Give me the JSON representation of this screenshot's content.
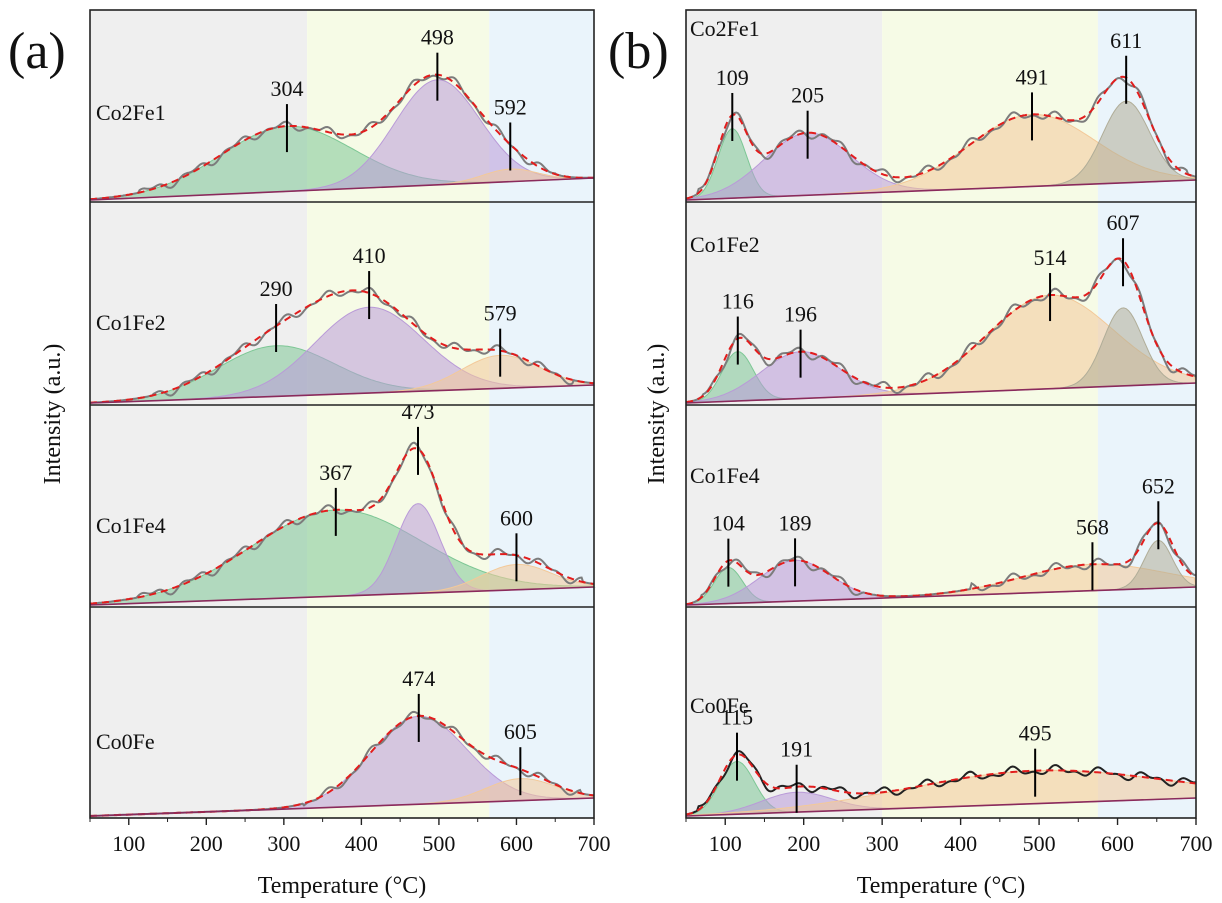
{
  "figure": {
    "panel_labels": [
      "(a)",
      "(b)"
    ]
  },
  "colors": {
    "region_low": "#efefef",
    "region_mid": "#f6fbe6",
    "region_high": "#eaf4fb",
    "component_1": "#7dc795",
    "component_2": "#b99ad8",
    "component_3": "#f3c999",
    "component_4": "#b0ad98",
    "measured": "#7c7c7c",
    "fit": "#e21d1d",
    "baseline": "#8a2a5c"
  },
  "chart_data": [
    {
      "type": "line",
      "panel": "(a)",
      "xlabel": "Temperature (°C)",
      "ylabel": "Intensity (a.u.)",
      "xlim": [
        50,
        700
      ],
      "xticks": [
        100,
        200,
        300,
        400,
        500,
        600,
        700
      ],
      "regions": [
        {
          "from": 50,
          "to": 330,
          "color": "region_low"
        },
        {
          "from": 330,
          "to": 565,
          "color": "region_mid"
        },
        {
          "from": 565,
          "to": 700,
          "color": "region_high"
        }
      ],
      "samples": [
        {
          "label": "Co2Fe1",
          "peaks": [
            {
              "center": 304,
              "label": "304",
              "height": 0.62,
              "width": 85,
              "color": "component_1"
            },
            {
              "center": 498,
              "label": "498",
              "height": 1.0,
              "width": 55,
              "color": "component_2"
            },
            {
              "center": 592,
              "label": "592",
              "height": 0.12,
              "width": 35,
              "color": "component_3"
            }
          ]
        },
        {
          "label": "Co1Fe2",
          "peaks": [
            {
              "center": 290,
              "label": "290",
              "height": 0.46,
              "width": 75,
              "color": "component_1"
            },
            {
              "center": 410,
              "label": "410",
              "height": 0.78,
              "width": 70,
              "color": "component_2"
            },
            {
              "center": 579,
              "label": "579",
              "height": 0.3,
              "width": 50,
              "color": "component_3"
            }
          ]
        },
        {
          "label": "Co1Fe4",
          "peaks": [
            {
              "center": 367,
              "label": "367",
              "height": 0.75,
              "width": 110,
              "color": "component_1"
            },
            {
              "center": 473,
              "label": "473",
              "height": 0.78,
              "width": 28,
              "color": "component_2"
            },
            {
              "center": 600,
              "label": "600",
              "height": 0.22,
              "width": 45,
              "color": "component_3"
            }
          ]
        },
        {
          "label": "Co0Fe",
          "peaks": [
            {
              "center": 474,
              "label": "474",
              "height": 0.88,
              "width": 62,
              "color": "component_2"
            },
            {
              "center": 605,
              "label": "605",
              "height": 0.22,
              "width": 45,
              "color": "component_3"
            }
          ]
        }
      ]
    },
    {
      "type": "line",
      "panel": "(b)",
      "xlabel": "Temperature (°C)",
      "ylabel": "Intensity (a.u.)",
      "xlim": [
        50,
        700
      ],
      "xticks": [
        100,
        200,
        300,
        400,
        500,
        600,
        700
      ],
      "regions": [
        {
          "from": 50,
          "to": 300,
          "color": "region_low"
        },
        {
          "from": 300,
          "to": 575,
          "color": "region_mid"
        },
        {
          "from": 575,
          "to": 700,
          "color": "region_high"
        }
      ],
      "samples": [
        {
          "label": "Co2Fe1",
          "peaks": [
            {
              "center": 109,
              "label": "109",
              "height": 0.58,
              "width": 18,
              "color": "component_1"
            },
            {
              "center": 205,
              "label": "205",
              "height": 0.52,
              "width": 55,
              "color": "component_2"
            },
            {
              "center": 491,
              "label": "491",
              "height": 0.6,
              "width": 80,
              "color": "component_3"
            },
            {
              "center": 611,
              "label": "611",
              "height": 0.68,
              "width": 30,
              "color": "component_4"
            }
          ]
        },
        {
          "label": "Co1Fe2",
          "peaks": [
            {
              "center": 116,
              "label": "116",
              "height": 0.38,
              "width": 20,
              "color": "component_1"
            },
            {
              "center": 196,
              "label": "196",
              "height": 0.36,
              "width": 50,
              "color": "component_2"
            },
            {
              "center": 514,
              "label": "514",
              "height": 0.72,
              "width": 80,
              "color": "component_3"
            },
            {
              "center": 607,
              "label": "607",
              "height": 0.6,
              "width": 25,
              "color": "component_4"
            }
          ]
        },
        {
          "label": "Co1Fe4",
          "peaks": [
            {
              "center": 104,
              "label": "104",
              "height": 0.3,
              "width": 18,
              "color": "component_1"
            },
            {
              "center": 189,
              "label": "189",
              "height": 0.34,
              "width": 45,
              "color": "component_2"
            },
            {
              "center": 568,
              "label": "568",
              "height": 0.22,
              "width": 90,
              "color": "component_3"
            },
            {
              "center": 652,
              "label": "652",
              "height": 0.4,
              "width": 18,
              "color": "component_4"
            }
          ]
        },
        {
          "label": "Co0Fe",
          "peaks": [
            {
              "center": 115,
              "label": "115",
              "height": 0.48,
              "width": 22,
              "color": "component_1"
            },
            {
              "center": 191,
              "label": "191",
              "height": 0.18,
              "width": 45,
              "color": "component_2"
            },
            {
              "center": 495,
              "label": "495",
              "height": 0.3,
              "width": 160,
              "color": "component_3"
            }
          ]
        }
      ]
    }
  ]
}
